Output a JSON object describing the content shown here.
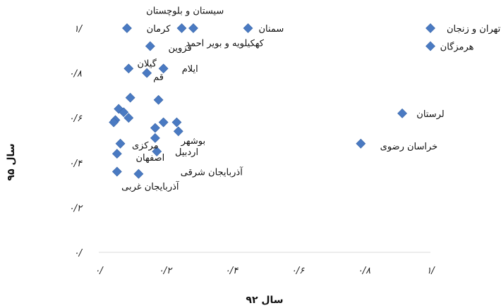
{
  "chart_data": {
    "type": "scatter",
    "xlabel": "سال ۹۲",
    "ylabel": "سال ۹۵",
    "xlim": [
      0,
      1
    ],
    "ylim": [
      0,
      1
    ],
    "grid": false,
    "x_ticks": [
      {
        "value": 0,
        "label": "۰/"
      },
      {
        "value": 0.2,
        "label": "۰/۲"
      },
      {
        "value": 0.4,
        "label": "۰/۴"
      },
      {
        "value": 0.6,
        "label": "۰/۶"
      },
      {
        "value": 0.8,
        "label": "۰/۸"
      },
      {
        "value": 1,
        "label": "۱/"
      }
    ],
    "y_ticks": [
      {
        "value": 0,
        "label": "۰/"
      },
      {
        "value": 0.2,
        "label": "۰/۲"
      },
      {
        "value": 0.4,
        "label": "۰/۴"
      },
      {
        "value": 0.6,
        "label": "۰/۶"
      },
      {
        "value": 0.8,
        "label": "۰/۸"
      },
      {
        "value": 1,
        "label": "۱/"
      }
    ],
    "marker_color": "#4a7ac2",
    "points": [
      {
        "x": 0.085,
        "y": 1.0
      },
      {
        "x": 0.25,
        "y": 1.0
      },
      {
        "x": 0.285,
        "y": 1.0
      },
      {
        "x": 0.45,
        "y": 1.0
      },
      {
        "x": 1.0,
        "y": 1.0
      },
      {
        "x": 1.0,
        "y": 0.92
      },
      {
        "x": 0.155,
        "y": 0.92
      },
      {
        "x": 0.09,
        "y": 0.82
      },
      {
        "x": 0.195,
        "y": 0.82
      },
      {
        "x": 0.145,
        "y": 0.8
      },
      {
        "x": 0.18,
        "y": 0.68
      },
      {
        "x": 0.095,
        "y": 0.69
      },
      {
        "x": 0.06,
        "y": 0.64
      },
      {
        "x": 0.075,
        "y": 0.625
      },
      {
        "x": 0.09,
        "y": 0.6
      },
      {
        "x": 0.05,
        "y": 0.59
      },
      {
        "x": 0.045,
        "y": 0.58
      },
      {
        "x": 0.195,
        "y": 0.58
      },
      {
        "x": 0.235,
        "y": 0.58
      },
      {
        "x": 0.17,
        "y": 0.555
      },
      {
        "x": 0.24,
        "y": 0.54
      },
      {
        "x": 0.17,
        "y": 0.51
      },
      {
        "x": 0.065,
        "y": 0.485
      },
      {
        "x": 0.175,
        "y": 0.45
      },
      {
        "x": 0.055,
        "y": 0.44
      },
      {
        "x": 0.055,
        "y": 0.36
      },
      {
        "x": 0.12,
        "y": 0.35
      },
      {
        "x": 0.915,
        "y": 0.62
      },
      {
        "x": 0.79,
        "y": 0.485
      }
    ],
    "annotations": [
      {
        "text": "سیستان و بلوچستان",
        "x": 0.26,
        "y": 1.08
      },
      {
        "text": "کرمان",
        "x": 0.18,
        "y": 1.0
      },
      {
        "text": "سمنان",
        "x": 0.52,
        "y": 1.0
      },
      {
        "text": "تهران و زنجان",
        "x": 1.13,
        "y": 1.0
      },
      {
        "text": "هرمزگان",
        "x": 1.08,
        "y": 0.92
      },
      {
        "text": "کهکیلویه و بویر احمد",
        "x": 0.38,
        "y": 0.935
      },
      {
        "text": "قزوین",
        "x": 0.245,
        "y": 0.915
      },
      {
        "text": "گیلان",
        "x": 0.145,
        "y": 0.845
      },
      {
        "text": "ایلام",
        "x": 0.275,
        "y": 0.82
      },
      {
        "text": "قم",
        "x": 0.18,
        "y": 0.785
      },
      {
        "text": "لرستان",
        "x": 1.0,
        "y": 0.62
      },
      {
        "text": "خراسان رضوی",
        "x": 0.935,
        "y": 0.475
      },
      {
        "text": "بوشهر",
        "x": 0.285,
        "y": 0.5
      },
      {
        "text": "مرکزی",
        "x": 0.14,
        "y": 0.48
      },
      {
        "text": "اردبیل",
        "x": 0.265,
        "y": 0.45
      },
      {
        "text": "اصفهان",
        "x": 0.155,
        "y": 0.425
      },
      {
        "text": "آذربایجان شرقی",
        "x": 0.34,
        "y": 0.36
      },
      {
        "text": "آذربایجان غربی",
        "x": 0.155,
        "y": 0.295
      }
    ]
  }
}
